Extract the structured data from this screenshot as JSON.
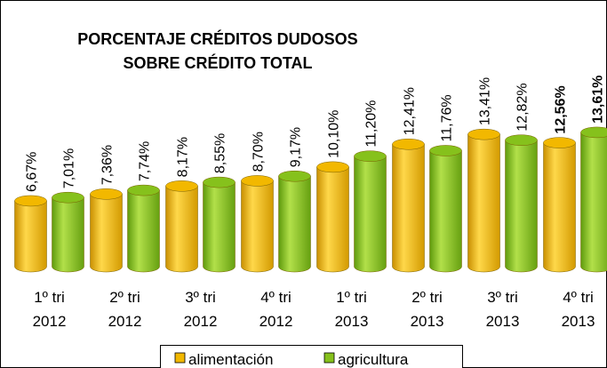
{
  "chart_data": {
    "type": "cylinder-bar",
    "title": [
      "PORCENTAJE CRÉDITOS DUDOSOS",
      "SOBRE CRÉDITO TOTAL"
    ],
    "categories": [
      [
        "1º tri",
        "2012"
      ],
      [
        "2º tri",
        "2012"
      ],
      [
        "3º tri",
        "2012"
      ],
      [
        "4º tri",
        "2012"
      ],
      [
        "1º tri",
        "2013"
      ],
      [
        "2º tri",
        "2013"
      ],
      [
        "3º tri",
        "2013"
      ],
      [
        "4º tri",
        "2013"
      ]
    ],
    "series": [
      {
        "name": "alimentación",
        "color": "#f2b800",
        "values": [
          6.67,
          7.36,
          8.17,
          8.7,
          10.1,
          12.41,
          13.41,
          12.56
        ],
        "value_labels": [
          "6,67%",
          "7,36%",
          "8,17%",
          "8,70%",
          "10,10%",
          "12,41%",
          "13,41%",
          "12,56%"
        ]
      },
      {
        "name": "agricultura",
        "color": "#86c11c",
        "values": [
          7.01,
          7.74,
          8.55,
          9.17,
          11.2,
          11.76,
          12.82,
          13.61
        ],
        "value_labels": [
          "7,01%",
          "7,74%",
          "8,55%",
          "9,17%",
          "11,20%",
          "11,76%",
          "12,82%",
          "13,61%"
        ]
      }
    ]
  }
}
